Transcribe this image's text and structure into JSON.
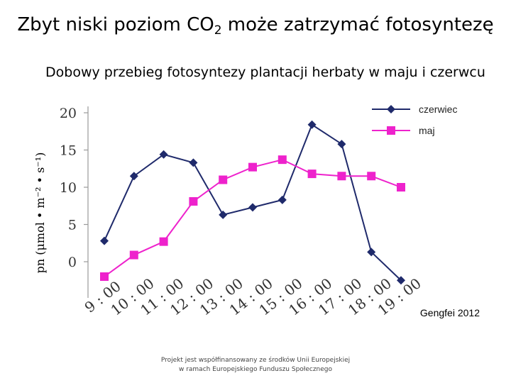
{
  "slide": {
    "title_main": "Zbyt niski poziom CO",
    "title_sub": "2",
    "title_rest": " może zatrzymać fotosyntezę",
    "source": "Gengfei 2012",
    "footer_line1": "Projekt jest współfinansowany ze środków Unii Europejskiej",
    "footer_line2": "w ramach Europejskiego Funduszu Społecznego"
  },
  "chart_data": {
    "type": "line",
    "title": "Dobowy przebieg fotosyntezy plantacji herbaty w maju i czerwcu",
    "ylabel": "pn (μmol • m⁻² • s⁻¹)",
    "xlabel": "",
    "ylim": [
      -4,
      20
    ],
    "yticks": [
      0,
      5,
      10,
      15,
      20
    ],
    "categories": [
      "9:00",
      "10:00",
      "11:00",
      "12:00",
      "13:00",
      "14:00",
      "15:00",
      "16:00",
      "17:00",
      "18:00",
      "19:00"
    ],
    "grid": false,
    "legend_position": "top-right",
    "series": [
      {
        "name": "czerwiec",
        "color": "#1f2a6b",
        "marker": "diamond",
        "values": [
          2.8,
          11.5,
          14.4,
          13.3,
          6.3,
          7.3,
          8.3,
          18.4,
          15.8,
          1.3,
          -2.5
        ]
      },
      {
        "name": "maj",
        "color": "#ee22cc",
        "marker": "square",
        "values": [
          -2.0,
          0.9,
          2.7,
          8.1,
          11.0,
          12.7,
          13.7,
          11.8,
          11.5,
          11.5,
          10.0
        ]
      }
    ]
  }
}
